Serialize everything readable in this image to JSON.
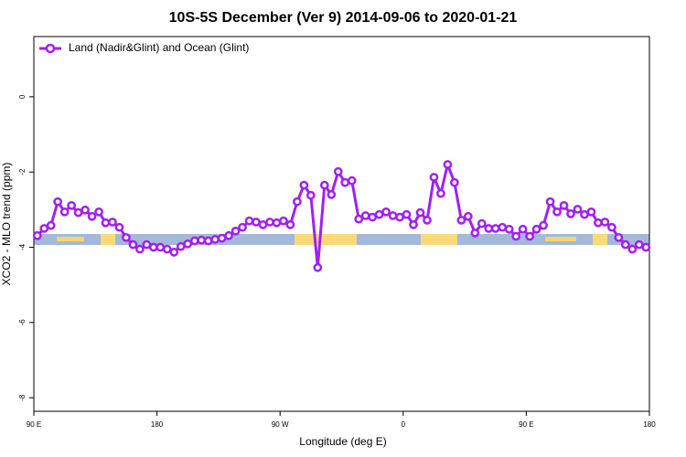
{
  "chart_data": {
    "type": "line",
    "title": "10S-5S December (Ver 9)   2014-09-06 to 2020-01-21",
    "x_label": "Longitude (deg E)",
    "y_label": "XCO2 - MLO trend (ppm)",
    "xlim": [
      90,
      540
    ],
    "ylim": [
      -8.36,
      1.6
    ],
    "xticks": [
      {
        "value": 90,
        "label": "90 E"
      },
      180,
      {
        "value": 270,
        "label": "90 W"
      },
      {
        "value": 360,
        "label": "0"
      },
      {
        "value": 450,
        "label": "90 E"
      },
      {
        "value": 540,
        "label": "180"
      }
    ],
    "yticks": [
      0,
      -2,
      -4,
      -6,
      -8
    ],
    "legend_position": "top-left",
    "x": [
      92.5,
      97.5,
      102.5,
      107.5,
      112.5,
      117.5,
      122.5,
      127.5,
      132.5,
      137.5,
      142.5,
      147.5,
      152.5,
      157.5,
      162.5,
      167.5,
      172.5,
      177.5,
      182.5,
      187.5,
      192.5,
      197.5,
      202.5,
      207.5,
      212.5,
      217.5,
      222.5,
      227.5,
      232.5,
      237.5,
      242.5,
      247.5,
      252.5,
      257.5,
      262.5,
      267.5,
      272.5,
      277.5,
      282.5,
      287.5,
      292.5,
      297.5,
      302.5,
      307.5,
      312.5,
      317.5,
      322.5,
      327.5,
      332.5,
      337.5,
      342.5,
      347.5,
      352.5,
      357.5,
      362.5,
      367.5,
      372.5,
      377.5,
      382.5,
      387.5,
      392.5,
      397.5,
      402.5,
      407.5,
      412.5,
      417.5,
      422.5,
      427.5,
      432.5,
      437.5,
      442.5,
      447.5,
      452.5,
      457.5,
      462.5,
      467.5,
      472.5,
      477.5,
      482.5,
      487.5,
      492.5,
      497.5,
      502.5,
      507.5,
      512.5,
      517.5,
      522.5,
      527.5,
      532.5,
      537.5
    ],
    "series": [
      {
        "name": "Land (Nadir&Glint) and Ocean (Glint)",
        "color": "#a020f0",
        "values": [
          -3.69,
          -3.5,
          -3.42,
          -2.79,
          -3.06,
          -2.89,
          -3.08,
          -3.01,
          -3.18,
          -3.06,
          -3.35,
          -3.33,
          -3.47,
          -3.74,
          -3.93,
          -4.05,
          -3.93,
          -4.0,
          -4.0,
          -4.05,
          -4.13,
          -3.98,
          -3.91,
          -3.83,
          -3.81,
          -3.83,
          -3.79,
          -3.76,
          -3.69,
          -3.57,
          -3.47,
          -3.3,
          -3.33,
          -3.4,
          -3.33,
          -3.35,
          -3.3,
          -3.4,
          -2.79,
          -2.35,
          -2.62,
          -4.54,
          -2.35,
          -2.6,
          -1.99,
          -2.28,
          -2.23,
          -3.25,
          -3.16,
          -3.2,
          -3.13,
          -3.06,
          -3.16,
          -3.2,
          -3.13,
          -3.4,
          -3.08,
          -3.28,
          -2.14,
          -2.57,
          -1.8,
          -2.28,
          -3.28,
          -3.18,
          -3.62,
          -3.37,
          -3.5,
          -3.5,
          -3.47,
          -3.52,
          -3.71,
          -3.52,
          -3.71,
          -3.52,
          -3.42,
          -2.79,
          -3.06,
          -2.89,
          -3.11,
          -2.99,
          -3.13,
          -3.06,
          -3.35,
          -3.33,
          -3.47,
          -3.74,
          -3.93,
          -4.05,
          -3.93,
          -4.0
        ]
      }
    ]
  }
}
